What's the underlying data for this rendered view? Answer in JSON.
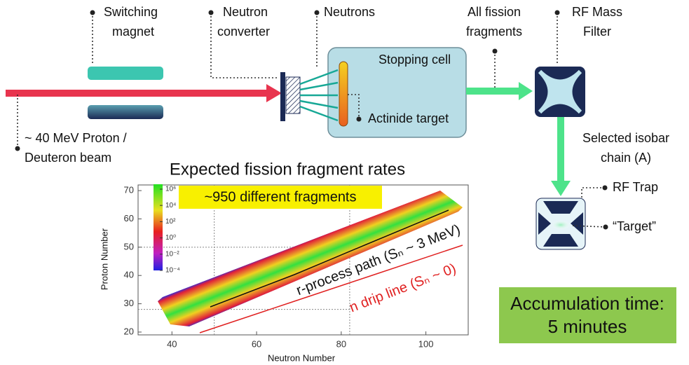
{
  "labels": {
    "switching_magnet": [
      "Switching",
      "magnet"
    ],
    "neutron_converter": [
      "Neutron",
      "converter"
    ],
    "neutrons": [
      "Neutrons"
    ],
    "all_fission_fragments": [
      "All fission",
      "fragments"
    ],
    "rf_mass_filter": [
      "RF Mass",
      "Filter"
    ],
    "stopping_cell": [
      "Stopping cell"
    ],
    "actinide_target": [
      "Actinide target"
    ],
    "beam": [
      "~ 40 MeV Proton /",
      "Deuteron beam"
    ],
    "selected_isobar": [
      "Selected isobar",
      "chain (A)"
    ],
    "rf_trap": [
      "RF Trap"
    ],
    "target": [
      "“Target”"
    ],
    "accumulation": [
      "Accumulation time:",
      "5 minutes"
    ]
  },
  "chart_data": {
    "type": "heatmap",
    "title": "Expected fission fragment rates",
    "callout": "~950 different fragments",
    "xlabel": "Neutron Number",
    "ylabel": "Proton Number",
    "xlim": [
      32,
      110
    ],
    "ylim": [
      19,
      72
    ],
    "xticks": [
      40,
      60,
      80,
      100
    ],
    "yticks": [
      20,
      30,
      40,
      50,
      60,
      70
    ],
    "reference_lines": {
      "x": [
        50,
        82
      ],
      "y": [
        28,
        50
      ]
    },
    "colorbar": {
      "log": true,
      "lim": [
        0.0001,
        4000000
      ],
      "ticks": [
        {
          "value": 1000000,
          "label": "10⁶"
        },
        {
          "value": 10000,
          "label": "10⁴"
        },
        {
          "value": 100,
          "label": "10²"
        },
        {
          "value": 1,
          "label": "10⁰"
        },
        {
          "value": 0.01,
          "label": "10⁻²"
        },
        {
          "value": 0.0001,
          "label": "10⁻⁴"
        }
      ]
    },
    "annotations": [
      "r-process path (Sₙ ~ 3 MeV)",
      "n drip line (Sₙ ~ 0)"
    ]
  }
}
